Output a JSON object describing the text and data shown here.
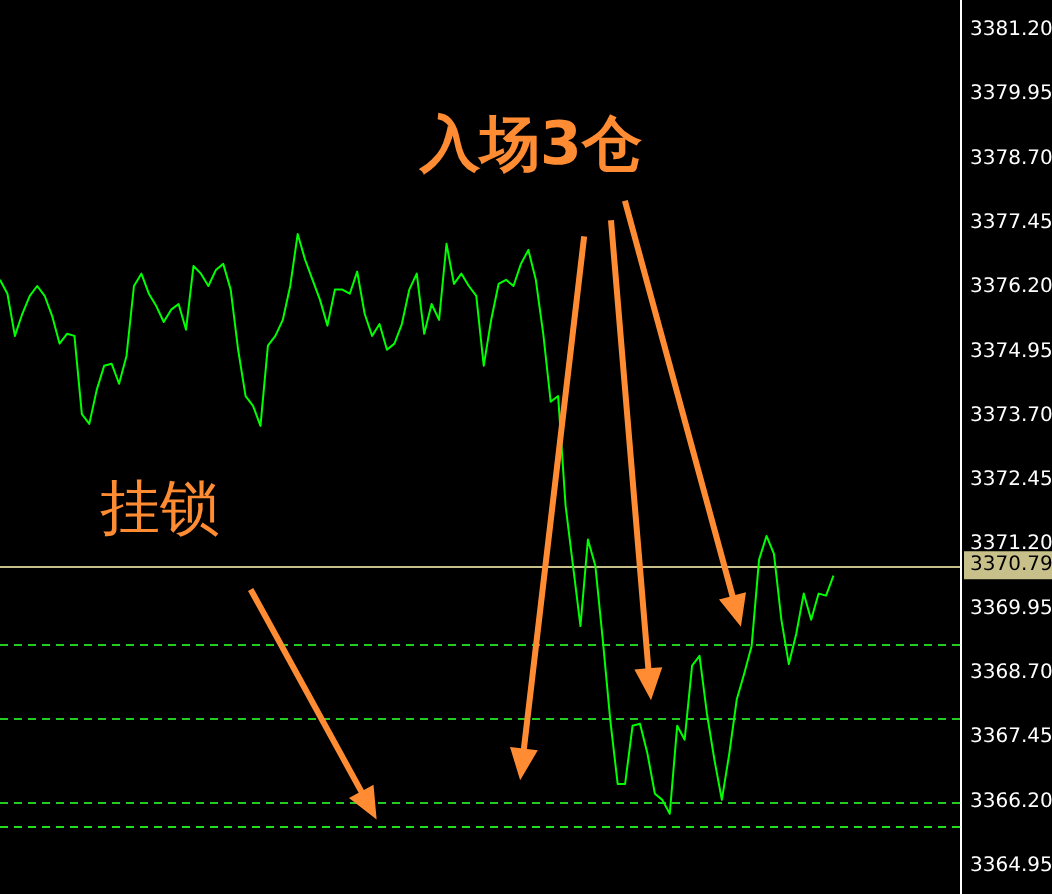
{
  "chart_data": {
    "type": "line",
    "categories": [
      null,
      null,
      null,
      null,
      null,
      null,
      null,
      null,
      null,
      null,
      null,
      null,
      null,
      null,
      null,
      null,
      null,
      null,
      null,
      null,
      null,
      null,
      null,
      null,
      null,
      null,
      null,
      null,
      null,
      null,
      null,
      null,
      null,
      null,
      null,
      null,
      null,
      null,
      null,
      null,
      null,
      null,
      null,
      null,
      null,
      null,
      null,
      null,
      null,
      null,
      null,
      null,
      null,
      null,
      null,
      null,
      null,
      null,
      null,
      null,
      null,
      null,
      null,
      null,
      null,
      null,
      null,
      null,
      null,
      null,
      null,
      null,
      null,
      null,
      null,
      null,
      null,
      null,
      null,
      null,
      null,
      null,
      null,
      null,
      null,
      null,
      null,
      null,
      null,
      null,
      null,
      null,
      null,
      null,
      null,
      null,
      null,
      null,
      null,
      null,
      null,
      null,
      null,
      null,
      null,
      null,
      null,
      null,
      null,
      null,
      null,
      null,
      null,
      null,
      null,
      null,
      null,
      null,
      null,
      null,
      null,
      null,
      null,
      null,
      null,
      null,
      null,
      null,
      null,
      null
    ],
    "series": [
      {
        "color": "#00ff00",
        "values": [
          3376.34,
          3376.07,
          3375.25,
          3375.68,
          3376.03,
          3376.22,
          3376.03,
          3375.64,
          3375.1,
          3375.29,
          3375.25,
          3373.73,
          3373.54,
          3374.2,
          3374.67,
          3374.71,
          3374.32,
          3374.86,
          3376.22,
          3376.46,
          3376.07,
          3375.83,
          3375.52,
          3375.76,
          3375.87,
          3375.37,
          3376.61,
          3376.46,
          3376.22,
          3376.53,
          3376.65,
          3376.15,
          3374.98,
          3374.08,
          3373.89,
          3373.5,
          3375.06,
          3375.25,
          3375.56,
          3376.22,
          3377.23,
          3376.73,
          3376.34,
          3375.95,
          3375.45,
          3376.15,
          3376.15,
          3376.07,
          3376.5,
          3375.68,
          3375.25,
          3375.48,
          3374.98,
          3375.1,
          3375.48,
          3376.15,
          3376.46,
          3375.29,
          3375.87,
          3375.56,
          3377.04,
          3376.26,
          3376.46,
          3376.22,
          3376.03,
          3374.67,
          3375.56,
          3376.26,
          3376.34,
          3376.22,
          3376.65,
          3376.92,
          3376.34,
          3375.29,
          3373.97,
          3374.08,
          3371.95,
          3370.78,
          3369.61,
          3371.29,
          3370.78,
          3369.34,
          3367.79,
          3366.54,
          3366.54,
          3367.67,
          3367.71,
          3367.13,
          3366.35,
          3366.23,
          3365.96,
          3367.67,
          3367.4,
          3368.84,
          3369.03,
          3367.9,
          3367.01,
          3366.23,
          3367.13,
          3368.18,
          3368.68,
          3369.22,
          3370.9,
          3371.36,
          3371.01,
          3369.73,
          3368.87,
          3369.46,
          3370.24,
          3369.73,
          3370.24,
          3370.2,
          3370.59,
          null,
          null,
          null,
          null,
          null,
          null,
          null,
          null,
          null,
          null,
          null,
          null,
          null,
          null,
          null,
          null,
          null
        ]
      }
    ],
    "ylim": [
      3364.4,
      3381.78
    ],
    "yticks": [
      3364.95,
      {
        "value": 3366.2,
        "label": "3366.20"
      },
      3367.45,
      {
        "value": 3368.7,
        "label": "3368.70"
      },
      3369.95,
      {
        "value": 3371.2,
        "label": "3371.20"
      },
      3372.45,
      {
        "value": 3373.7,
        "label": "3373.70"
      },
      3374.95,
      {
        "value": 3376.2,
        "label": "3376.20"
      },
      3377.45,
      {
        "value": 3378.7,
        "label": "3378.70"
      },
      3379.95,
      {
        "value": 3381.2,
        "label": "3381.20"
      }
    ],
    "tick_labels": "y",
    "grid": false,
    "legend": false,
    "marker": "none",
    "line_style": "solid",
    "ref_lines": [
      {
        "axis": "y",
        "value": 3370.79,
        "label": "3370.79",
        "color": "#c8c08a",
        "line_style": "solid"
      },
      {
        "axis": "y",
        "value": 3369.26,
        "color": "#22cc22",
        "line_style": "dashed"
      },
      {
        "axis": "y",
        "value": 3367.83,
        "color": "#22cc22",
        "line_style": "dashed"
      },
      {
        "axis": "y",
        "value": 3366.2,
        "color": "#22cc22",
        "line_style": "dashed"
      },
      {
        "axis": "y",
        "value": 3365.73,
        "color": "#22dd22",
        "line_style": "dashed"
      }
    ],
    "annotations": [
      "入场3仓",
      "挂锁"
    ]
  }
}
